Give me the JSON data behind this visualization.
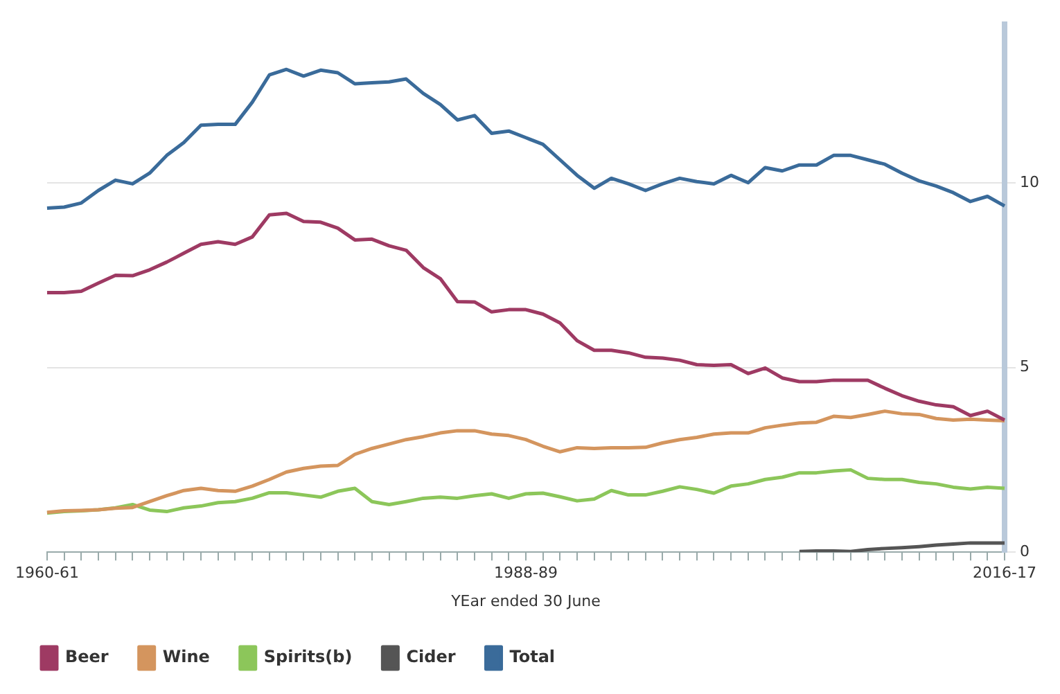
{
  "chart_data": {
    "type": "line",
    "xlabel": "YEar ended 30 June",
    "categories": [
      "1960-61",
      null,
      null,
      null,
      null,
      null,
      null,
      null,
      null,
      null,
      null,
      null,
      null,
      null,
      null,
      null,
      null,
      null,
      null,
      null,
      null,
      null,
      null,
      null,
      null,
      null,
      null,
      null,
      "1988-89",
      null,
      null,
      null,
      null,
      null,
      null,
      null,
      null,
      null,
      null,
      null,
      null,
      null,
      null,
      null,
      null,
      null,
      null,
      null,
      null,
      null,
      null,
      null,
      null,
      null,
      null,
      null,
      "2016-17"
    ],
    "series": [
      {
        "name": "Beer",
        "color": "#9e3a63",
        "values": [
          7.03,
          7.03,
          7.07,
          7.29,
          7.5,
          7.49,
          7.65,
          7.86,
          8.1,
          8.34,
          8.41,
          8.34,
          8.54,
          9.14,
          9.18,
          8.96,
          8.94,
          8.78,
          8.46,
          8.48,
          8.3,
          8.18,
          7.71,
          7.41,
          6.79,
          6.78,
          6.51,
          6.57,
          6.57,
          6.45,
          6.21,
          5.73,
          5.47,
          5.47,
          5.4,
          5.28,
          5.26,
          5.2,
          5.08,
          5.06,
          5.08,
          4.84,
          4.99,
          4.72,
          4.62,
          4.62,
          4.66,
          4.66,
          4.66,
          4.44,
          4.24,
          4.09,
          3.99,
          3.94,
          3.7,
          3.82,
          3.58
        ]
      },
      {
        "name": "Wine",
        "color": "#d4955e",
        "values": [
          1.08,
          1.12,
          1.13,
          1.15,
          1.19,
          1.21,
          1.37,
          1.53,
          1.67,
          1.73,
          1.67,
          1.65,
          1.79,
          1.97,
          2.17,
          2.27,
          2.33,
          2.35,
          2.65,
          2.81,
          2.93,
          3.05,
          3.13,
          3.23,
          3.29,
          3.29,
          3.2,
          3.16,
          3.05,
          2.87,
          2.72,
          2.83,
          2.81,
          2.83,
          2.83,
          2.84,
          2.96,
          3.05,
          3.11,
          3.2,
          3.23,
          3.23,
          3.37,
          3.44,
          3.5,
          3.52,
          3.68,
          3.65,
          3.73,
          3.82,
          3.75,
          3.73,
          3.62,
          3.58,
          3.6,
          3.58,
          3.56
        ]
      },
      {
        "name": "Spirits(b)",
        "color": "#8cc65a",
        "values": [
          1.06,
          1.1,
          1.12,
          1.15,
          1.2,
          1.29,
          1.14,
          1.1,
          1.2,
          1.25,
          1.34,
          1.37,
          1.46,
          1.61,
          1.61,
          1.55,
          1.49,
          1.65,
          1.73,
          1.37,
          1.29,
          1.37,
          1.46,
          1.49,
          1.46,
          1.53,
          1.58,
          1.46,
          1.58,
          1.6,
          1.5,
          1.39,
          1.44,
          1.67,
          1.55,
          1.55,
          1.65,
          1.77,
          1.7,
          1.6,
          1.79,
          1.85,
          1.97,
          2.03,
          2.15,
          2.15,
          2.2,
          2.23,
          2.0,
          1.97,
          1.97,
          1.89,
          1.85,
          1.76,
          1.71,
          1.76,
          1.73
        ]
      },
      {
        "name": "Cider",
        "color": "#555555",
        "values": [
          null,
          null,
          null,
          null,
          null,
          null,
          null,
          null,
          null,
          null,
          null,
          null,
          null,
          null,
          null,
          null,
          null,
          null,
          null,
          null,
          null,
          null,
          null,
          null,
          null,
          null,
          null,
          null,
          null,
          null,
          null,
          null,
          null,
          null,
          null,
          null,
          null,
          null,
          null,
          null,
          null,
          null,
          null,
          null,
          0.02,
          0.03,
          0.03,
          0.02,
          0.07,
          0.1,
          0.12,
          0.15,
          0.19,
          0.22,
          0.25,
          0.25,
          0.25
        ]
      },
      {
        "name": "Total",
        "color": "#3a6b9a",
        "values": [
          9.32,
          9.35,
          9.46,
          9.8,
          10.08,
          9.98,
          10.27,
          10.75,
          11.1,
          11.57,
          11.59,
          11.59,
          12.19,
          12.93,
          13.08,
          12.9,
          13.06,
          12.99,
          12.69,
          12.72,
          12.74,
          12.82,
          12.43,
          12.13,
          11.71,
          11.83,
          11.35,
          11.41,
          11.23,
          11.05,
          10.63,
          10.21,
          9.86,
          10.13,
          9.98,
          9.8,
          9.98,
          10.13,
          10.04,
          9.98,
          10.21,
          10.01,
          10.42,
          10.33,
          10.49,
          10.49,
          10.75,
          10.75,
          10.63,
          10.51,
          10.27,
          10.06,
          9.92,
          9.74,
          9.5,
          9.64,
          9.38
        ]
      }
    ],
    "ylim": [
      0,
      14.3
    ],
    "yticks": [
      0,
      5,
      10
    ],
    "grid": "y",
    "legend": "bottom left",
    "marker": "none",
    "line_style": "solid"
  }
}
